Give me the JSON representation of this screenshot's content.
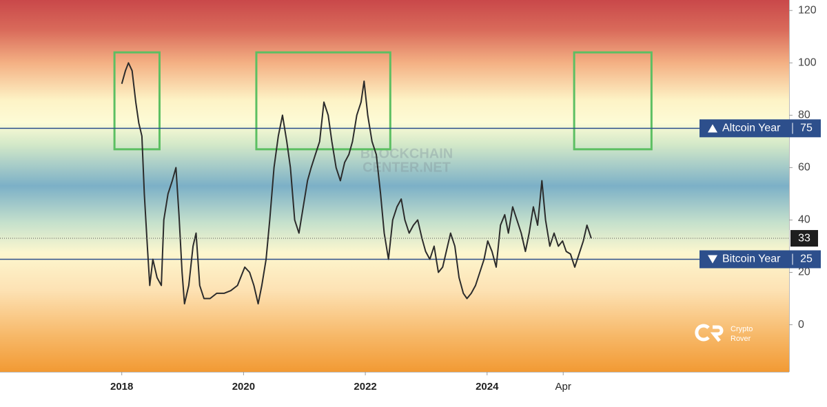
{
  "chart_data": {
    "type": "line",
    "x": [
      2018.0,
      2018.06,
      2018.11,
      2018.17,
      2018.23,
      2018.28,
      2018.33,
      2018.37,
      2018.42,
      2018.46,
      2018.51,
      2018.58,
      2018.65,
      2018.69,
      2018.76,
      2018.83,
      2018.89,
      2018.94,
      2018.99,
      2019.03,
      2019.1,
      2019.17,
      2019.22,
      2019.28,
      2019.35,
      2019.45,
      2019.56,
      2019.68,
      2019.79,
      2019.9,
      2020.02,
      2020.1,
      2020.17,
      2020.24,
      2020.3,
      2020.37,
      2020.43,
      2020.5,
      2020.57,
      2020.64,
      2020.71,
      2020.77,
      2020.84,
      2020.91,
      2020.98,
      2021.05,
      2021.11,
      2021.18,
      2021.25,
      2021.32,
      2021.39,
      2021.45,
      2021.52,
      2021.59,
      2021.66,
      2021.73,
      2021.79,
      2021.86,
      2021.93,
      2021.98,
      2022.04,
      2022.11,
      2022.18,
      2022.25,
      2022.31,
      2022.38,
      2022.45,
      2022.52,
      2022.59,
      2022.65,
      2022.72,
      2022.79,
      2022.86,
      2022.93,
      2022.99,
      2023.06,
      2023.13,
      2023.2,
      2023.27,
      2023.33,
      2023.4,
      2023.47,
      2023.54,
      2023.61,
      2023.67,
      2023.74,
      2023.81,
      2023.88,
      2023.95,
      2024.01,
      2024.08,
      2024.15,
      2024.22,
      2024.29,
      2024.35,
      2024.42,
      2024.49,
      2024.56,
      2024.63,
      2024.69,
      2024.76,
      2024.83,
      2024.9,
      2024.96,
      2025.03,
      2025.1,
      2025.17,
      2025.24,
      2025.3,
      2025.37,
      2025.44,
      2025.51,
      2025.58,
      2025.64,
      2025.71
    ],
    "values": [
      92,
      97,
      100,
      97,
      85,
      77,
      72,
      50,
      30,
      15,
      25,
      18,
      15,
      40,
      50,
      55,
      60,
      42,
      20,
      8,
      15,
      30,
      35,
      15,
      10,
      10,
      12,
      12,
      13,
      15,
      22,
      20,
      15,
      8,
      15,
      25,
      40,
      60,
      72,
      80,
      70,
      60,
      40,
      35,
      45,
      55,
      60,
      65,
      70,
      85,
      80,
      70,
      60,
      55,
      62,
      65,
      70,
      80,
      85,
      93,
      80,
      70,
      65,
      50,
      35,
      25,
      40,
      45,
      48,
      40,
      35,
      38,
      40,
      33,
      28,
      25,
      30,
      20,
      22,
      28,
      35,
      30,
      18,
      12,
      10,
      12,
      15,
      20,
      25,
      32,
      28,
      22,
      38,
      42,
      35,
      45,
      40,
      35,
      28,
      35,
      45,
      38,
      55,
      40,
      30,
      35,
      30,
      32,
      28,
      27,
      22,
      27,
      32,
      38,
      33
    ],
    "color": "#2b2b2b",
    "xlim": [
      2016.0,
      2028.96
    ],
    "xticks": [
      2018,
      2020,
      2022,
      2024,
      {
        "value": 2025.25,
        "label": "Apr"
      }
    ],
    "ylim": [
      -18,
      124
    ],
    "yticks": [
      0,
      20,
      40,
      60,
      80,
      100,
      120
    ],
    "reference_lines": [
      {
        "value": 75,
        "label": "Altcoin Year",
        "color": "#2d4f8c"
      },
      {
        "value": 25,
        "label": "Bitcoin Year",
        "color": "#2d4f8c"
      }
    ],
    "highlights": [
      {
        "x": [
          2017.88,
          2018.62
        ],
        "y": [
          67,
          104
        ],
        "color": "#5cbf62"
      },
      {
        "x": [
          2020.21,
          2022.41
        ],
        "y": [
          67,
          104
        ],
        "color": "#5cbf62"
      },
      {
        "x": [
          2025.43,
          2026.7
        ],
        "y": [
          67,
          104
        ],
        "color": "#5cbf62"
      }
    ],
    "watermark": [
      "BLOCKCHAIN",
      "CENTER.NET"
    ],
    "logo": [
      "Crypto",
      "Rover"
    ]
  }
}
